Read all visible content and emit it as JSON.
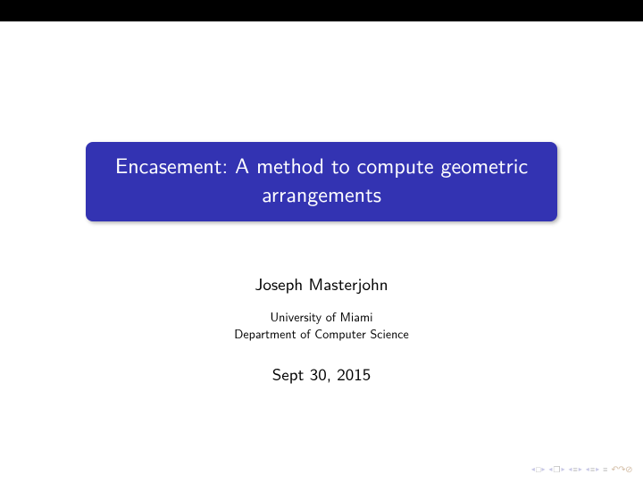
{
  "title": "Encasement: A method to compute geometric arrangements",
  "author": "Joseph Masterjohn",
  "affiliation_line1": "University of Miami",
  "affiliation_line2": "Department of Computer Science",
  "date": "Sept 30, 2015",
  "colors": {
    "title_bg": "#3333b2",
    "title_text": "#ffffff",
    "body_text": "#000000",
    "nav_arrow": "#c8c8e6",
    "nav_icon": "#bfbfbf",
    "nav_reset": "#d4bfa8",
    "topbar": "#000000",
    "background": "#ffffff"
  },
  "nav": {
    "first_icon": "□",
    "section_icon": "❐",
    "sub_icon": "≣",
    "slide_icon": "≣",
    "back_icon": "≣",
    "reset": "⊘⥀⤾"
  }
}
